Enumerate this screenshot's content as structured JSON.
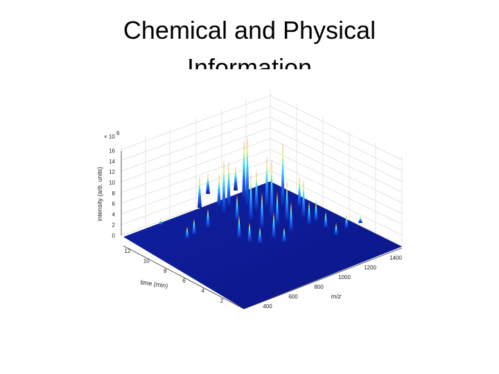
{
  "slide": {
    "title_line1": "Chemical and Physical",
    "title_line2": "Information"
  },
  "figure": {
    "z_axis": {
      "label": "intensity (arb. units)",
      "multiplier": "× 10",
      "exponent": "6",
      "ticks": [
        "0",
        "2",
        "4",
        "6",
        "8",
        "10",
        "12",
        "14",
        "16"
      ]
    },
    "time_axis": {
      "label": "time (min)",
      "ticks": [
        "2",
        "4",
        "6",
        "8",
        "10",
        "12"
      ]
    },
    "mz_axis": {
      "label": "m/z",
      "ticks": [
        "400",
        "600",
        "800",
        "1000",
        "1200",
        "1400"
      ]
    }
  }
}
